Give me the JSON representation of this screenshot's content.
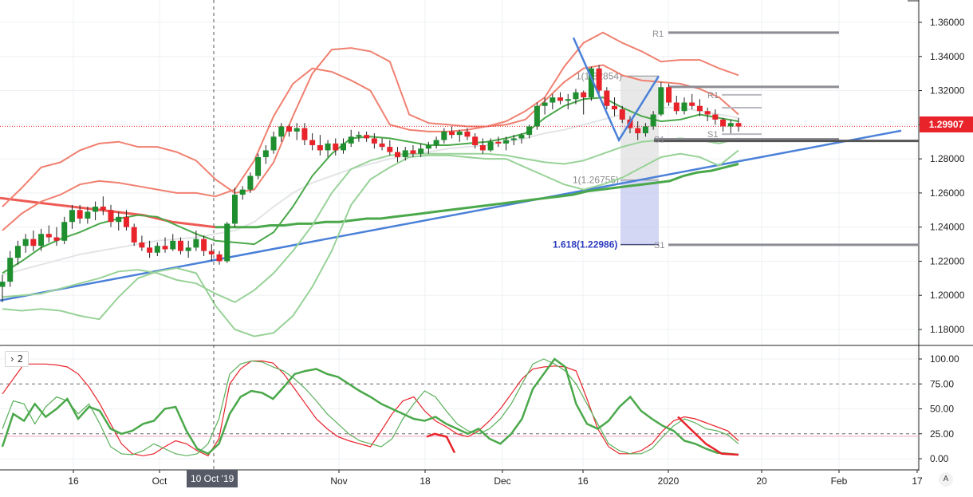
{
  "colors": {
    "up": "#1e8e2f",
    "down": "#e8232a",
    "bb_outer": "#f08070",
    "bb_inner": "#98d298",
    "trendline": "#4a80d8",
    "pivot": "#8c8c94",
    "stoch_k": "#e8232a",
    "stoch_d": "#5ab05a"
  },
  "price_axis": {
    "ticks": [
      "1.36000",
      "1.34000",
      "1.32000",
      "1.30000",
      "1.28000",
      "1.26000",
      "1.24000",
      "1.22000",
      "1.20000",
      "1.18000"
    ],
    "current": "1.29907"
  },
  "osc_axis": {
    "ticks": [
      "100.00",
      "75.00",
      "50.00",
      "25.00",
      "0.00"
    ]
  },
  "time_axis": {
    "ticks": [
      "16",
      "Oct",
      "Nov",
      "18",
      "Dec",
      "16",
      "2020",
      "20",
      "Feb",
      "17"
    ],
    "crosshair": "10 Oct '19"
  },
  "pane_tag": "2",
  "auto_label": "A",
  "chart_data": [
    {
      "type": "candlestick",
      "ylim": [
        1.17,
        1.37
      ],
      "candles": [
        [
          1.205,
          1.212,
          1.196,
          1.208
        ],
        [
          1.208,
          1.226,
          1.205,
          1.222
        ],
        [
          1.222,
          1.232,
          1.218,
          1.229
        ],
        [
          1.229,
          1.236,
          1.225,
          1.233
        ],
        [
          1.233,
          1.238,
          1.226,
          1.229
        ],
        [
          1.229,
          1.239,
          1.226,
          1.236
        ],
        [
          1.236,
          1.241,
          1.231,
          1.234
        ],
        [
          1.234,
          1.24,
          1.229,
          1.232
        ],
        [
          1.232,
          1.246,
          1.23,
          1.243
        ],
        [
          1.243,
          1.253,
          1.239,
          1.25
        ],
        [
          1.25,
          1.253,
          1.242,
          1.245
        ],
        [
          1.245,
          1.252,
          1.242,
          1.249
        ],
        [
          1.249,
          1.255,
          1.244,
          1.252
        ],
        [
          1.252,
          1.258,
          1.247,
          1.25
        ],
        [
          1.25,
          1.253,
          1.24,
          1.243
        ],
        [
          1.243,
          1.249,
          1.238,
          1.246
        ],
        [
          1.246,
          1.25,
          1.238,
          1.24
        ],
        [
          1.24,
          1.242,
          1.229,
          1.231
        ],
        [
          1.231,
          1.235,
          1.226,
          1.228
        ],
        [
          1.228,
          1.232,
          1.222,
          1.225
        ],
        [
          1.225,
          1.231,
          1.223,
          1.229
        ],
        [
          1.229,
          1.234,
          1.225,
          1.227
        ],
        [
          1.227,
          1.236,
          1.226,
          1.232
        ],
        [
          1.232,
          1.234,
          1.224,
          1.226
        ],
        [
          1.226,
          1.232,
          1.222,
          1.228
        ],
        [
          1.228,
          1.238,
          1.226,
          1.233
        ],
        [
          1.233,
          1.235,
          1.223,
          1.226
        ],
        [
          1.226,
          1.23,
          1.22,
          1.224
        ],
        [
          1.224,
          1.226,
          1.218,
          1.22
        ],
        [
          1.22,
          1.243,
          1.219,
          1.242
        ],
        [
          1.242,
          1.263,
          1.24,
          1.259
        ],
        [
          1.259,
          1.264,
          1.256,
          1.262
        ],
        [
          1.262,
          1.272,
          1.26,
          1.27
        ],
        [
          1.27,
          1.283,
          1.268,
          1.281
        ],
        [
          1.281,
          1.288,
          1.277,
          1.285
        ],
        [
          1.285,
          1.296,
          1.283,
          1.293
        ],
        [
          1.293,
          1.301,
          1.29,
          1.299
        ],
        [
          1.299,
          1.3,
          1.293,
          1.296
        ],
        [
          1.296,
          1.301,
          1.291,
          1.298
        ],
        [
          1.298,
          1.301,
          1.288,
          1.291
        ],
        [
          1.291,
          1.295,
          1.285,
          1.288
        ],
        [
          1.288,
          1.294,
          1.282,
          1.285
        ],
        [
          1.285,
          1.291,
          1.281,
          1.289
        ],
        [
          1.289,
          1.292,
          1.282,
          1.285
        ],
        [
          1.285,
          1.292,
          1.283,
          1.289
        ],
        [
          1.289,
          1.297,
          1.287,
          1.293
        ],
        [
          1.293,
          1.296,
          1.29,
          1.294
        ],
        [
          1.294,
          1.296,
          1.29,
          1.292
        ],
        [
          1.292,
          1.295,
          1.286,
          1.289
        ],
        [
          1.289,
          1.292,
          1.285,
          1.287
        ],
        [
          1.287,
          1.291,
          1.282,
          1.284
        ],
        [
          1.284,
          1.287,
          1.278,
          1.281
        ],
        [
          1.281,
          1.287,
          1.279,
          1.285
        ],
        [
          1.285,
          1.288,
          1.281,
          1.283
        ],
        [
          1.283,
          1.289,
          1.281,
          1.286
        ],
        [
          1.286,
          1.29,
          1.283,
          1.288
        ],
        [
          1.288,
          1.293,
          1.286,
          1.291
        ],
        [
          1.291,
          1.298,
          1.289,
          1.296
        ],
        [
          1.296,
          1.299,
          1.292,
          1.294
        ],
        [
          1.294,
          1.297,
          1.29,
          1.296
        ],
        [
          1.296,
          1.298,
          1.291,
          1.293
        ],
        [
          1.293,
          1.295,
          1.286,
          1.288
        ],
        [
          1.288,
          1.292,
          1.283,
          1.285
        ],
        [
          1.285,
          1.292,
          1.284,
          1.29
        ],
        [
          1.29,
          1.293,
          1.287,
          1.289
        ],
        [
          1.289,
          1.293,
          1.285,
          1.291
        ],
        [
          1.291,
          1.294,
          1.288,
          1.292
        ],
        [
          1.292,
          1.295,
          1.289,
          1.294
        ],
        [
          1.294,
          1.3,
          1.292,
          1.299
        ],
        [
          1.299,
          1.313,
          1.297,
          1.311
        ],
        [
          1.311,
          1.316,
          1.306,
          1.313
        ],
        [
          1.313,
          1.318,
          1.309,
          1.316
        ],
        [
          1.316,
          1.319,
          1.312,
          1.314
        ],
        [
          1.314,
          1.318,
          1.309,
          1.315
        ],
        [
          1.315,
          1.321,
          1.312,
          1.319
        ],
        [
          1.319,
          1.32,
          1.306,
          1.316
        ],
        [
          1.316,
          1.334,
          1.314,
          1.333
        ],
        [
          1.333,
          1.335,
          1.318,
          1.32
        ],
        [
          1.32,
          1.322,
          1.309,
          1.311
        ],
        [
          1.311,
          1.316,
          1.305,
          1.309
        ],
        [
          1.309,
          1.311,
          1.301,
          1.303
        ],
        [
          1.303,
          1.305,
          1.295,
          1.298
        ],
        [
          1.298,
          1.302,
          1.291,
          1.295
        ],
        [
          1.295,
          1.301,
          1.293,
          1.299
        ],
        [
          1.299,
          1.308,
          1.297,
          1.306
        ],
        [
          1.306,
          1.325,
          1.305,
          1.322
        ],
        [
          1.322,
          1.324,
          1.311,
          1.313
        ],
        [
          1.313,
          1.317,
          1.306,
          1.308
        ],
        [
          1.308,
          1.316,
          1.306,
          1.313
        ],
        [
          1.313,
          1.318,
          1.309,
          1.311
        ],
        [
          1.311,
          1.315,
          1.305,
          1.308
        ],
        [
          1.308,
          1.31,
          1.302,
          1.306
        ],
        [
          1.306,
          1.309,
          1.3,
          1.303
        ],
        [
          1.303,
          1.304,
          1.296,
          1.299
        ],
        [
          1.299,
          1.303,
          1.295,
          1.301
        ],
        [
          1.301,
          1.304,
          1.296,
          1.299
        ]
      ],
      "bollinger_outer": {
        "upper": [
          1.252,
          1.263,
          1.275,
          1.278,
          1.285,
          1.289,
          1.29,
          1.287,
          1.287,
          1.284,
          1.279,
          1.268,
          1.26,
          1.262,
          1.278,
          1.305,
          1.33,
          1.344,
          1.345,
          1.343,
          1.337,
          1.306,
          1.301,
          1.3,
          1.299,
          1.299,
          1.302,
          1.308,
          1.316,
          1.334,
          1.348,
          1.354,
          1.348,
          1.343,
          1.337,
          1.338,
          1.338,
          1.333,
          1.329
        ],
        "lower": [
          1.192,
          1.191,
          1.192,
          1.191,
          1.188,
          1.186,
          1.199,
          1.21,
          1.214,
          1.216,
          1.213,
          1.194,
          1.18,
          1.176,
          1.178,
          1.188,
          1.205,
          1.226,
          1.253,
          1.268,
          1.275,
          1.281,
          1.282,
          1.282,
          1.281,
          1.28,
          1.28,
          1.275,
          1.27,
          1.265,
          1.262,
          1.265,
          1.269,
          1.275,
          1.281,
          1.283,
          1.281,
          1.276,
          1.285
        ]
      },
      "bollinger_inner": {
        "upper": [
          1.238,
          1.248,
          1.255,
          1.259,
          1.265,
          1.267,
          1.266,
          1.264,
          1.262,
          1.26,
          1.26,
          1.258,
          1.262,
          1.279,
          1.305,
          1.324,
          1.333,
          1.331,
          1.326,
          1.32,
          1.3,
          1.297,
          1.296,
          1.296,
          1.297,
          1.299,
          1.3,
          1.303,
          1.314,
          1.325,
          1.333,
          1.335,
          1.329,
          1.326,
          1.325,
          1.324,
          1.321,
          1.316,
          1.306
        ],
        "lower": [
          1.199,
          1.2,
          1.201,
          1.204,
          1.207,
          1.21,
          1.214,
          1.215,
          1.213,
          1.209,
          1.207,
          1.201,
          1.196,
          1.203,
          1.213,
          1.226,
          1.241,
          1.26,
          1.274,
          1.279,
          1.282,
          1.283,
          1.283,
          1.283,
          1.283,
          1.283,
          1.282,
          1.28,
          1.278,
          1.277,
          1.279,
          1.283,
          1.287,
          1.29,
          1.291,
          1.292,
          1.291,
          1.289,
          1.292
        ]
      },
      "moving_averages": {
        "fast_green": [
          1.213,
          1.22,
          1.228,
          1.233,
          1.237,
          1.242,
          1.245,
          1.247,
          1.246,
          1.241,
          1.236,
          1.232,
          1.231,
          1.23,
          1.237,
          1.252,
          1.27,
          1.283,
          1.292,
          1.293,
          1.292,
          1.29,
          1.288,
          1.288,
          1.289,
          1.29,
          1.292,
          1.295,
          1.304,
          1.311,
          1.315,
          1.316,
          1.31,
          1.305,
          1.302,
          1.303,
          1.306,
          1.304,
          1.302
        ],
        "slow_green": [
          1.24,
          1.24,
          1.24,
          1.24,
          1.241,
          1.241,
          1.242,
          1.242,
          1.243,
          1.243,
          1.244,
          1.245,
          1.245,
          1.246,
          1.247,
          1.248,
          1.249,
          1.25,
          1.251,
          1.252,
          1.253,
          1.254,
          1.255,
          1.256,
          1.257,
          1.258,
          1.259,
          1.261,
          1.262,
          1.263,
          1.264,
          1.265,
          1.266,
          1.267,
          1.27,
          1.272,
          1.273,
          1.275,
          1.277
        ],
        "slow_red": [
          1.257,
          1.256,
          1.255,
          1.254,
          1.253,
          1.252,
          1.251,
          1.25,
          1.249,
          1.248,
          1.247,
          1.245,
          1.243,
          1.242,
          1.241,
          1.24
        ],
        "slow_light": [
          1.212,
          1.215,
          1.218,
          1.221,
          1.224,
          1.226,
          1.228,
          1.23,
          1.232,
          1.233,
          1.234,
          1.236,
          1.238,
          1.243,
          1.252,
          1.26,
          1.266,
          1.27,
          1.274,
          1.277,
          1.28,
          1.282,
          1.284,
          1.286,
          1.287,
          1.288,
          1.29,
          1.292,
          1.295,
          1.297,
          1.3,
          1.303,
          1.306,
          1.309,
          1.31,
          1.31,
          1.308,
          1.306,
          1.304
        ]
      },
      "pivots": {
        "R1_top": 1.354,
        "R1_mid": 1.3222,
        "R1_sub": 1.3175,
        "S1_sub": 1.2945,
        "S1_upper": 1.2915,
        "S1_upper_label": "S1",
        "S1_upper_value": 1.2895,
        "S1_low": 1.2296,
        "labels": [
          "R1",
          "R1",
          "S1",
          "S1",
          "S1"
        ]
      },
      "fib": {
        "labels": [
          "1(1.32854)",
          "1(1.26755)",
          "1.618(1.22986)"
        ],
        "values": [
          1.32854,
          1.26755,
          1.22986
        ]
      },
      "trendline": {
        "from": [
          0,
          1.197
        ],
        "to": [
          1,
          1.296
        ]
      }
    },
    {
      "type": "line",
      "ylim": [
        0,
        100
      ],
      "levels": [
        75,
        25
      ],
      "series": [
        {
          "color": "red",
          "values": [
            65,
            80,
            95,
            95,
            95,
            94,
            92,
            85,
            72,
            55,
            35,
            15,
            5,
            3,
            5,
            12,
            18,
            15,
            8,
            3,
            20,
            75,
            90,
            98,
            98,
            96,
            85,
            70,
            55,
            40,
            30,
            22,
            18,
            15,
            12,
            28,
            45,
            58,
            62,
            48,
            38,
            32,
            25,
            22,
            28,
            38,
            50,
            65,
            80,
            90,
            92,
            93,
            92,
            88,
            60,
            30,
            12,
            5,
            5,
            8,
            15,
            28,
            38,
            42,
            40,
            36,
            32,
            28,
            18
          ]
        },
        {
          "color": "green",
          "values": [
            30,
            58,
            55,
            35,
            52,
            62,
            58,
            45,
            55,
            35,
            12,
            5,
            4,
            8,
            15,
            10,
            5,
            3,
            5,
            15,
            40,
            85,
            95,
            98,
            97,
            92,
            88,
            80,
            70,
            58,
            45,
            35,
            25,
            18,
            15,
            12,
            20,
            40,
            55,
            68,
            62,
            48,
            35,
            28,
            25,
            30,
            40,
            55,
            75,
            95,
            100,
            95,
            88,
            75,
            55,
            35,
            15,
            8,
            5,
            5,
            10,
            22,
            33,
            40,
            36,
            30,
            28,
            24,
            15
          ]
        },
        {
          "color": "green-bold",
          "values": [
            12,
            45,
            38,
            55,
            42,
            50,
            60,
            40,
            52,
            48,
            30,
            25,
            28,
            35,
            38,
            50,
            52,
            28,
            10,
            5,
            15,
            45,
            62,
            68,
            66,
            60,
            72,
            85,
            88,
            90,
            85,
            82,
            75,
            68,
            62,
            55,
            50,
            45,
            40,
            38,
            42,
            35,
            30,
            25,
            30,
            20,
            15,
            25,
            40,
            70,
            85,
            100,
            92,
            55,
            35,
            30,
            38,
            52,
            62,
            48,
            40,
            33,
            28,
            18,
            15,
            10,
            6,
            5,
            4
          ]
        }
      ]
    }
  ]
}
